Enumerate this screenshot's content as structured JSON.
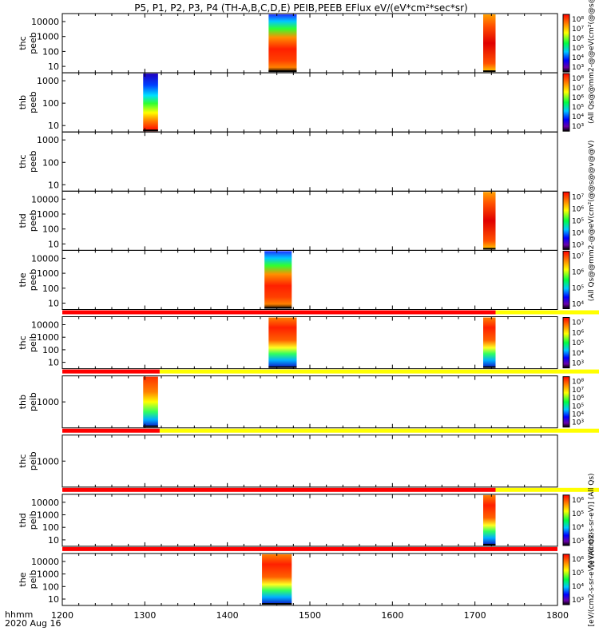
{
  "title": "P5, P1, P2, P3, P4 (TH-A,B,C,D,E) PEIB,PEEB EFlux eV/(eV*cm²*sec*sr)",
  "footer": {
    "time_label": "hhmm",
    "date_label": "2020 Aug 16"
  },
  "colors": {
    "flag_red": "#ff0000",
    "flag_yellow": "#ffff00",
    "axis": "#000000"
  },
  "chart_data": {
    "type": "heatmap",
    "x_ticks": [
      "1200",
      "1300",
      "1400",
      "1500",
      "1600",
      "1700",
      "1800"
    ],
    "xlim": [
      1200,
      1800
    ],
    "panels": [
      {
        "name": "thc_peeb",
        "ylabel_1": "thc",
        "ylabel_2": "peeb",
        "yticks": [
          "10000",
          "1000",
          "100",
          "10"
        ],
        "colorbar": true,
        "cbar_ticks": [
          "10⁸",
          "10⁷",
          "10⁶",
          "10⁵",
          "10⁴",
          "10³"
        ],
        "cbar_label": "(All Qs@@mm2-@@eV(cm²(@@s@@v@@V)",
        "blocks": [
          {
            "start": 1450,
            "end": 1484,
            "style": "electron"
          },
          {
            "start": 1710,
            "end": 1725,
            "style": "electron_red"
          }
        ]
      },
      {
        "name": "thb_peeb",
        "ylabel_1": "thb",
        "ylabel_2": "peeb",
        "yticks": [
          "1000",
          "100",
          "10"
        ],
        "colorbar": true,
        "cbar_ticks": [
          "10⁸",
          "10⁷",
          "10⁶",
          "10⁵",
          "10⁴",
          "10³"
        ],
        "cbar_label": "",
        "blocks": [
          {
            "start": 1298,
            "end": 1316,
            "style": "low_energy"
          }
        ]
      },
      {
        "name": "thc_peeb_2",
        "ylabel_1": "thc",
        "ylabel_2": "peeb",
        "yticks": [
          "1000",
          "100",
          "10"
        ],
        "colorbar": false,
        "cbar_ticks": [],
        "cbar_label": "",
        "blocks": []
      },
      {
        "name": "thd_peeb",
        "ylabel_1": "thd",
        "ylabel_2": "peeb",
        "yticks": [
          "10000",
          "1000",
          "100",
          "10"
        ],
        "colorbar": true,
        "cbar_ticks": [
          "10⁷",
          "10⁶",
          "10⁵",
          "10⁴",
          "10³"
        ],
        "cbar_label": "(All Qs@@mm2-@@eV(cm²(@@s@@v@@V)",
        "blocks": [
          {
            "start": 1710,
            "end": 1725,
            "style": "electron_red"
          }
        ]
      },
      {
        "name": "the_peeb",
        "ylabel_1": "the",
        "ylabel_2": "peeb",
        "yticks": [
          "10000",
          "1000",
          "100",
          "10"
        ],
        "colorbar": true,
        "cbar_ticks": [
          "10⁷",
          "10⁶",
          "10⁵",
          "10⁴"
        ],
        "cbar_label": "",
        "blocks": [
          {
            "start": 1445,
            "end": 1478,
            "style": "electron"
          }
        ]
      },
      {
        "name": "thc_peib",
        "ylabel_1": "thc",
        "ylabel_2": "peib",
        "yticks": [
          "10000",
          "1000",
          "100",
          "10"
        ],
        "colorbar": true,
        "cbar_ticks": [
          "10⁷",
          "10⁶",
          "10⁵",
          "10⁴",
          "10³"
        ],
        "cbar_label": "",
        "flag": {
          "red_end": 1725
        },
        "blocks": [
          {
            "start": 1450,
            "end": 1484,
            "style": "ion"
          },
          {
            "start": 1710,
            "end": 1725,
            "style": "ion"
          }
        ]
      },
      {
        "name": "thb_peib",
        "ylabel_1": "thb",
        "ylabel_2": "peib",
        "yticks": [
          "1000"
        ],
        "colorbar": true,
        "cbar_ticks": [
          "10⁸",
          "10⁷",
          "10⁶",
          "10⁵",
          "10⁴",
          "10³"
        ],
        "cbar_label": "",
        "flag": {
          "red_end": 1318
        },
        "blocks": [
          {
            "start": 1298,
            "end": 1316,
            "style": "ion_low"
          }
        ]
      },
      {
        "name": "thc_peib_2",
        "ylabel_1": "thc",
        "ylabel_2": "peib",
        "yticks": [
          "1000"
        ],
        "colorbar": false,
        "cbar_ticks": [],
        "cbar_label": "",
        "flag": {
          "red_end": 1318
        },
        "blocks": []
      },
      {
        "name": "thd_peib",
        "ylabel_1": "thd",
        "ylabel_2": "peib",
        "yticks": [
          "10000",
          "1000",
          "100",
          "10"
        ],
        "colorbar": true,
        "cbar_ticks": [
          "10⁶",
          "10⁵",
          "10⁴",
          "10³"
        ],
        "cbar_label": "[eV/(cm2-s-sr-eV)] (All Qs)",
        "flag": {
          "red_end": 1725
        },
        "blocks": [
          {
            "start": 1710,
            "end": 1725,
            "style": "ion"
          }
        ]
      },
      {
        "name": "the_peib",
        "ylabel_1": "the",
        "ylabel_2": "peib",
        "yticks": [
          "10000",
          "1000",
          "100",
          "10"
        ],
        "colorbar": true,
        "cbar_ticks": [
          "10⁶",
          "10⁵",
          "10⁴",
          "10³"
        ],
        "cbar_label": "[eV/(cm2-s-sr-eV)] (All Qs)",
        "flag": {
          "red_end": 1800
        },
        "blocks": [
          {
            "start": 1442,
            "end": 1478,
            "style": "ion"
          }
        ]
      }
    ]
  }
}
